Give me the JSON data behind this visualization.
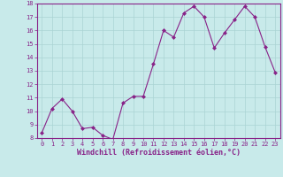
{
  "x": [
    0,
    1,
    2,
    3,
    4,
    5,
    6,
    7,
    8,
    9,
    10,
    11,
    12,
    13,
    14,
    15,
    16,
    17,
    18,
    19,
    20,
    21,
    22,
    23
  ],
  "y": [
    8.4,
    10.2,
    10.9,
    10.0,
    8.7,
    8.8,
    8.2,
    7.9,
    10.6,
    11.1,
    11.1,
    13.5,
    16.0,
    15.5,
    17.3,
    17.8,
    17.0,
    14.7,
    15.8,
    16.8,
    17.8,
    17.0,
    14.8,
    12.9
  ],
  "line_color": "#882288",
  "marker": "D",
  "marker_size": 2,
  "background_color": "#c8eaea",
  "grid_color": "#aad4d4",
  "xlabel": "Windchill (Refroidissement éolien,°C)",
  "ylim": [
    8,
    18
  ],
  "xlim": [
    -0.5,
    23.5
  ],
  "yticks": [
    8,
    9,
    10,
    11,
    12,
    13,
    14,
    15,
    16,
    17,
    18
  ],
  "xticks": [
    0,
    1,
    2,
    3,
    4,
    5,
    6,
    7,
    8,
    9,
    10,
    11,
    12,
    13,
    14,
    15,
    16,
    17,
    18,
    19,
    20,
    21,
    22,
    23
  ],
  "tick_fontsize": 5.0,
  "xlabel_fontsize": 6.0,
  "spine_color": "#882288",
  "tick_color": "#882288"
}
